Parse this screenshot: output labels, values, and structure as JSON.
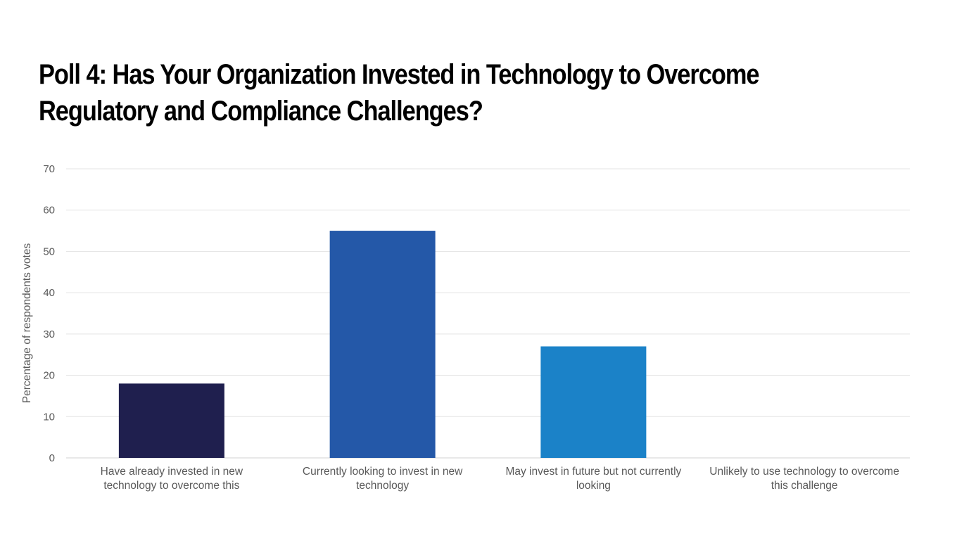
{
  "page": {
    "title_line1": "Poll 4: Has Your Organization Invested in Technology to Overcome",
    "title_line2": "Regulatory and Compliance Challenges?"
  },
  "chart_data": {
    "type": "bar",
    "title": "Poll 4: Has Your Organization Invested in Technology to Overcome Regulatory and Compliance Challenges?",
    "ylabel": "Percentage of respondents votes",
    "xlabel": "",
    "ylim": [
      0,
      70
    ],
    "yticks": [
      0,
      10,
      20,
      30,
      40,
      50,
      60,
      70
    ],
    "grid": true,
    "legend": "none",
    "categories": [
      [
        "Have already invested in new",
        "technology to overcome this"
      ],
      [
        "Currently looking to invest in new",
        "technology"
      ],
      [
        "May invest in future but not currently",
        "looking"
      ],
      [
        "Unlikely to use technology to overcome",
        "this challenge"
      ]
    ],
    "values": [
      18,
      55,
      27,
      0
    ],
    "colors": [
      "#1f1f4e",
      "#2458a8",
      "#1b82c8",
      "#1b82c8"
    ]
  }
}
